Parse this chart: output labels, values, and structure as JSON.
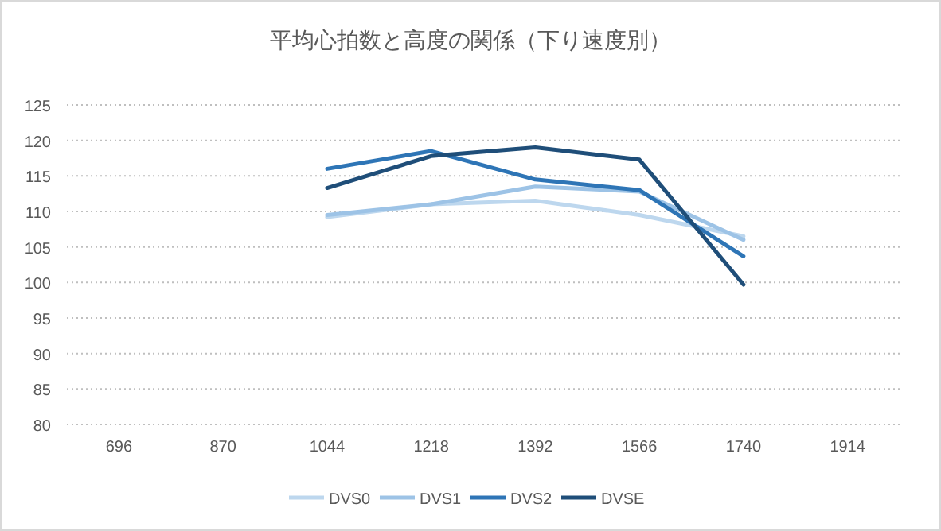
{
  "chart_data": {
    "type": "line",
    "title": "平均心拍数と高度の関係（下り速度別）",
    "categories": [
      "696",
      "870",
      "1044",
      "1218",
      "1392",
      "1566",
      "1740",
      "1914"
    ],
    "series": [
      {
        "name": "DVS0",
        "color": "#bdd7ee",
        "values": [
          null,
          null,
          109.2,
          111,
          111.5,
          109.5,
          106.5,
          null
        ]
      },
      {
        "name": "DVS1",
        "color": "#9dc3e6",
        "values": [
          null,
          null,
          109.5,
          111,
          113.5,
          112.8,
          106,
          null
        ]
      },
      {
        "name": "DVS2",
        "color": "#2e75b6",
        "values": [
          null,
          null,
          116,
          118.5,
          114.5,
          113,
          103.7,
          null
        ]
      },
      {
        "name": "DVSE",
        "color": "#1f4e79",
        "values": [
          null,
          null,
          113.3,
          117.8,
          119,
          117.3,
          99.7,
          null
        ]
      }
    ],
    "ylim": [
      80,
      125
    ],
    "yticks": [
      80,
      85,
      90,
      95,
      100,
      105,
      110,
      115,
      120,
      125
    ],
    "grid": "y",
    "legend": "bottom"
  }
}
